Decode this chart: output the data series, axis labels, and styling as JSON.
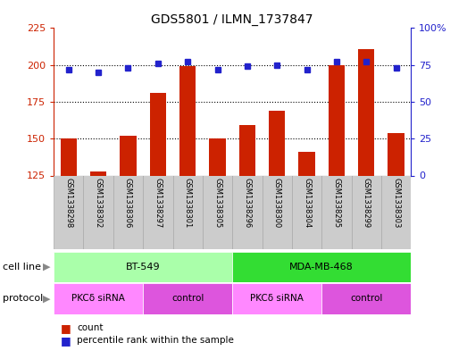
{
  "title": "GDS5801 / ILMN_1737847",
  "samples": [
    "GSM1338298",
    "GSM1338302",
    "GSM1338306",
    "GSM1338297",
    "GSM1338301",
    "GSM1338305",
    "GSM1338296",
    "GSM1338300",
    "GSM1338304",
    "GSM1338295",
    "GSM1338299",
    "GSM1338303"
  ],
  "counts": [
    150,
    128,
    152,
    181,
    199,
    150,
    159,
    169,
    141,
    200,
    211,
    154
  ],
  "percentiles": [
    72,
    70,
    73,
    76,
    77,
    72,
    74,
    75,
    72,
    77,
    77,
    73
  ],
  "ylim_left": [
    125,
    225
  ],
  "ylim_right": [
    0,
    100
  ],
  "yticks_left": [
    125,
    150,
    175,
    200,
    225
  ],
  "yticks_right": [
    0,
    25,
    50,
    75,
    100
  ],
  "bar_color": "#CC2200",
  "dot_color": "#2222CC",
  "cell_line_groups": [
    {
      "label": "BT-549",
      "start": 0,
      "end": 6,
      "color": "#AAFFAA"
    },
    {
      "label": "MDA-MB-468",
      "start": 6,
      "end": 12,
      "color": "#33DD33"
    }
  ],
  "protocol_groups": [
    {
      "label": "PKCδ siRNA",
      "start": 0,
      "end": 3,
      "color": "#FF88FF"
    },
    {
      "label": "control",
      "start": 3,
      "end": 6,
      "color": "#DD55DD"
    },
    {
      "label": "PKCδ siRNA",
      "start": 6,
      "end": 9,
      "color": "#FF88FF"
    },
    {
      "label": "control",
      "start": 9,
      "end": 12,
      "color": "#DD55DD"
    }
  ],
  "label_cell_line": "cell line",
  "label_protocol": "protocol",
  "legend_count": "count",
  "legend_percentile": "percentile rank within the sample",
  "sample_box_color": "#CCCCCC",
  "sample_box_edge": "#AAAAAA"
}
